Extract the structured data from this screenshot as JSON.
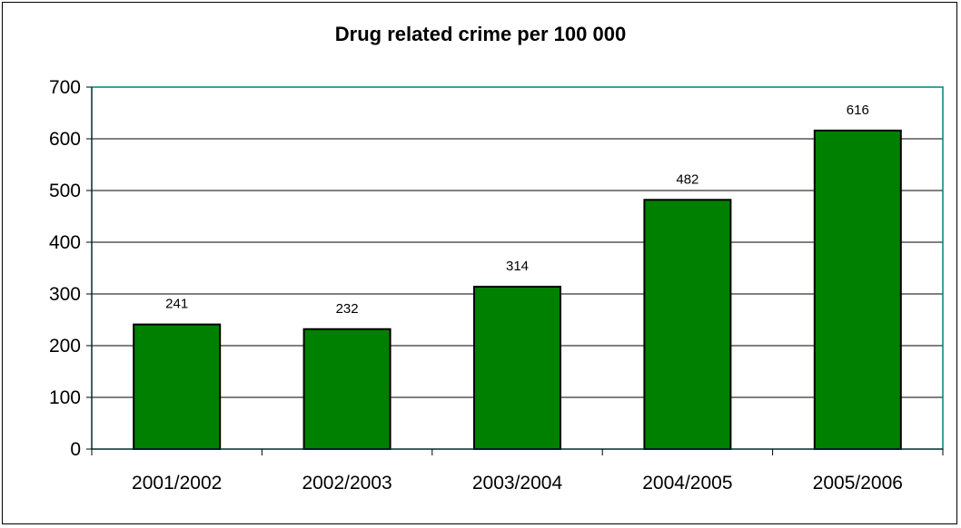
{
  "chart_data": {
    "type": "bar",
    "title": "Drug related crime per 100 000",
    "xlabel": "",
    "ylabel": "",
    "categories": [
      "2001/2002",
      "2002/2003",
      "2003/2004",
      "2004/2005",
      "2005/2006"
    ],
    "values": [
      241,
      232,
      314,
      482,
      616
    ],
    "data_labels": [
      "241",
      "232",
      "314",
      "482",
      "616"
    ],
    "ylim": [
      0,
      700
    ],
    "yticks": [
      0,
      100,
      200,
      300,
      400,
      500,
      600,
      700
    ],
    "ytick_labels": [
      "0",
      "100",
      "200",
      "300",
      "400",
      "500",
      "600",
      "700"
    ],
    "grid": true,
    "legend": "none",
    "colors": {
      "bar_fill": "#008000",
      "bar_stroke": "#000000",
      "plot_border": "#008080",
      "gridline": "#000000"
    }
  }
}
